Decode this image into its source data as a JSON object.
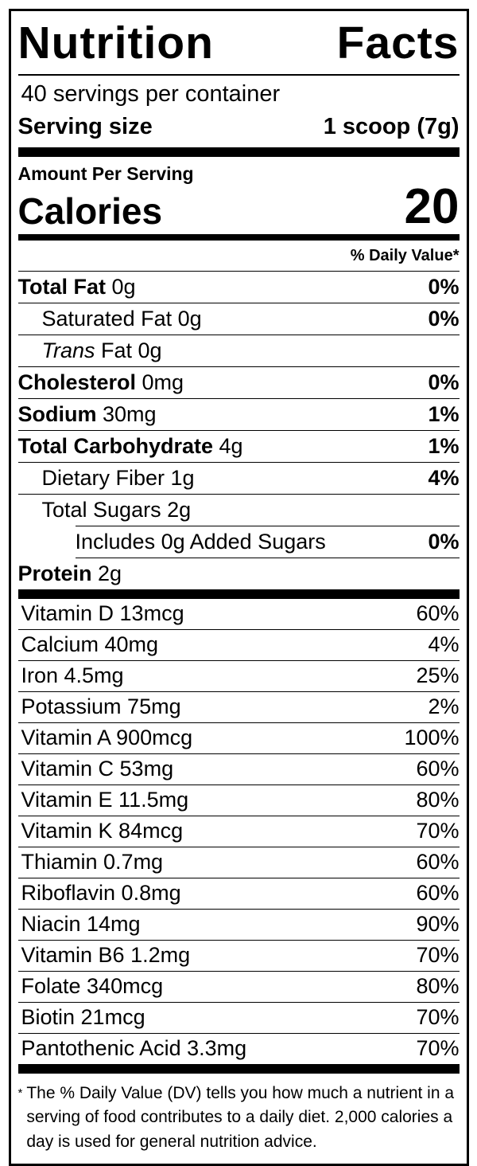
{
  "colors": {
    "text": "#000000",
    "background": "#ffffff",
    "rule": "#000000"
  },
  "header": {
    "title": "Nutrition Facts"
  },
  "serving": {
    "servings_per_container": "40 servings per container",
    "serving_size_label": "Serving size",
    "serving_size_value": "1 scoop (7g)"
  },
  "calories": {
    "amount_per_serving_label": "Amount Per Serving",
    "label": "Calories",
    "value": "20"
  },
  "daily_value_header": "% Daily Value*",
  "main_rows": [
    {
      "label_bold": "Total Fat",
      "label_rest": " 0g",
      "dv": "0%",
      "indent": 0
    },
    {
      "label_rest": "Saturated Fat 0g",
      "dv": "0%",
      "indent": 1
    },
    {
      "label_italic": "Trans",
      "label_rest": " Fat 0g",
      "dv": "",
      "indent": 1
    },
    {
      "label_bold": "Cholesterol",
      "label_rest": " 0mg",
      "dv": "0%",
      "indent": 0
    },
    {
      "label_bold": "Sodium",
      "label_rest": " 30mg",
      "dv": "1%",
      "indent": 0
    },
    {
      "label_bold": "Total Carbohydrate",
      "label_rest": " 4g",
      "dv": "1%",
      "indent": 0
    },
    {
      "label_rest": "Dietary Fiber 1g",
      "dv": "4%",
      "indent": 1
    },
    {
      "label_rest": "Total Sugars 2g",
      "dv": "",
      "indent": 1,
      "no_bottom_line": true
    },
    {
      "label_rest": "Includes 0g Added Sugars",
      "dv": "0%",
      "indent": 2,
      "line_indent": true
    },
    {
      "label_bold": "Protein",
      "label_rest": " 2g",
      "dv": "",
      "indent": 0
    }
  ],
  "vitamin_rows": [
    {
      "label": "Vitamin D 13mcg",
      "dv": "60%"
    },
    {
      "label": "Calcium 40mg",
      "dv": "4%"
    },
    {
      "label": "Iron 4.5mg",
      "dv": "25%"
    },
    {
      "label": "Potassium 75mg",
      "dv": "2%"
    },
    {
      "label": "Vitamin A 900mcg",
      "dv": "100%"
    },
    {
      "label": "Vitamin C 53mg",
      "dv": "60%"
    },
    {
      "label": "Vitamin E 11.5mg",
      "dv": "80%"
    },
    {
      "label": "Vitamin K 84mcg",
      "dv": "70%"
    },
    {
      "label": "Thiamin 0.7mg",
      "dv": "60%"
    },
    {
      "label": "Riboflavin 0.8mg",
      "dv": "60%"
    },
    {
      "label": "Niacin 14mg",
      "dv": "90%"
    },
    {
      "label": "Vitamin B6 1.2mg",
      "dv": "70%"
    },
    {
      "label": "Folate 340mcg",
      "dv": "80%"
    },
    {
      "label": "Biotin 21mcg",
      "dv": "70%"
    },
    {
      "label": "Pantothenic Acid 3.3mg",
      "dv": "70%"
    }
  ],
  "footnote": {
    "marker": "*",
    "text": "The % Daily Value (DV) tells you how much a nutrient in a serving of food contributes to a daily diet. 2,000 calories a day is used for general nutrition advice."
  }
}
